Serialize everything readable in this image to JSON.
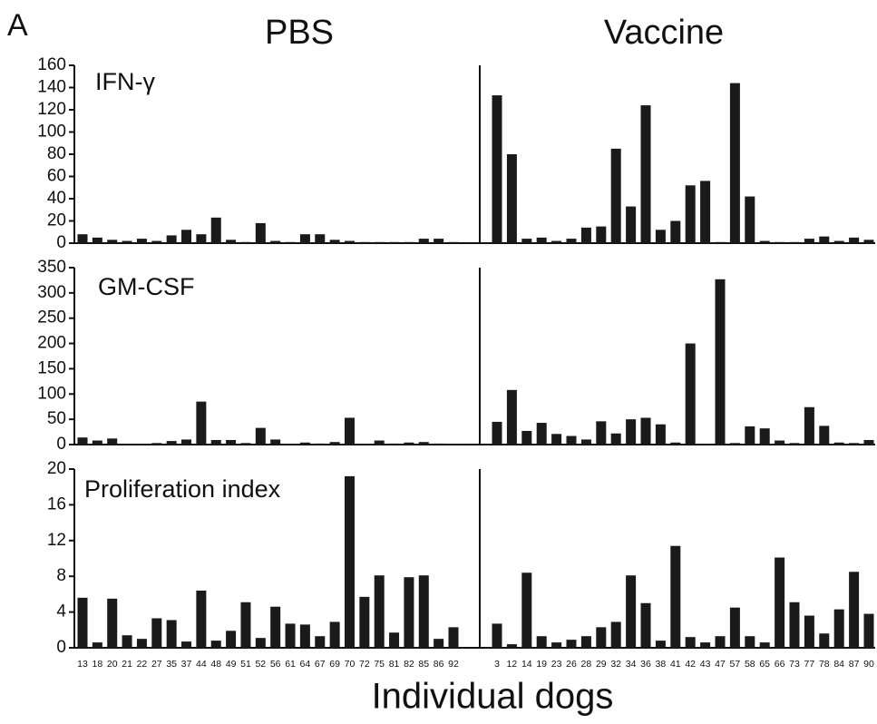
{
  "panel_label": "A",
  "group_titles": [
    "PBS",
    "Vaccine"
  ],
  "x_label": "Individual dogs",
  "chart_data": [
    {
      "type": "bar",
      "title": "IFN-γ",
      "color": "#1a1a1a",
      "ylim": [
        0,
        160
      ],
      "yticks": [
        0,
        20,
        40,
        60,
        80,
        100,
        120,
        140,
        160
      ],
      "values": [
        8,
        5,
        3,
        2,
        4,
        2,
        7,
        12,
        8,
        23,
        3,
        1,
        18,
        2,
        1,
        8,
        8,
        3,
        2,
        1,
        1,
        1,
        1,
        4,
        4,
        1,
        133,
        80,
        4,
        5,
        2,
        4,
        14,
        15,
        85,
        33,
        124,
        12,
        20,
        52,
        56,
        1,
        144,
        42,
        2,
        1,
        1,
        4,
        6,
        2,
        5,
        3
      ]
    },
    {
      "type": "bar",
      "title": "GM-CSF",
      "color": "#1a1a1a",
      "ylim": [
        0,
        350
      ],
      "yticks": [
        0,
        50,
        100,
        150,
        200,
        250,
        300,
        350
      ],
      "values": [
        14,
        8,
        12,
        1,
        1,
        3,
        7,
        10,
        85,
        9,
        9,
        3,
        33,
        10,
        1,
        4,
        2,
        5,
        53,
        1,
        8,
        2,
        4,
        5,
        2,
        1,
        45,
        108,
        27,
        43,
        21,
        17,
        10,
        46,
        22,
        50,
        53,
        40,
        4,
        200,
        1,
        327,
        3,
        36,
        32,
        8,
        3,
        74,
        37,
        4,
        3,
        9
      ]
    },
    {
      "type": "bar",
      "title": "Proliferation index",
      "color": "#1a1a1a",
      "ylim": [
        0,
        20
      ],
      "yticks": [
        0,
        4,
        8,
        12,
        16,
        20
      ],
      "categories": [
        "13",
        "18",
        "20",
        "21",
        "22",
        "27",
        "35",
        "37",
        "44",
        "48",
        "49",
        "51",
        "52",
        "56",
        "61",
        "64",
        "67",
        "69",
        "70",
        "72",
        "75",
        "81",
        "82",
        "85",
        "86",
        "92",
        "3",
        "12",
        "14",
        "19",
        "23",
        "26",
        "28",
        "29",
        "32",
        "34",
        "36",
        "38",
        "41",
        "42",
        "43",
        "47",
        "57",
        "58",
        "65",
        "66",
        "73",
        "77",
        "78",
        "84",
        "87",
        "90"
      ],
      "values": [
        5.6,
        0.6,
        5.5,
        1.4,
        1.0,
        3.3,
        3.1,
        0.7,
        6.4,
        0.8,
        1.9,
        5.1,
        1.1,
        4.6,
        2.7,
        2.6,
        1.3,
        2.9,
        19.2,
        5.7,
        8.1,
        1.7,
        7.9,
        8.1,
        1.0,
        2.3,
        2.7,
        0.4,
        8.4,
        1.3,
        0.6,
        0.9,
        1.3,
        2.3,
        2.9,
        8.1,
        5.0,
        0.8,
        11.4,
        1.2,
        0.6,
        1.3,
        4.5,
        1.3,
        0.6,
        10.1,
        5.1,
        3.6,
        1.6,
        4.3,
        8.5,
        3.8
      ]
    }
  ]
}
